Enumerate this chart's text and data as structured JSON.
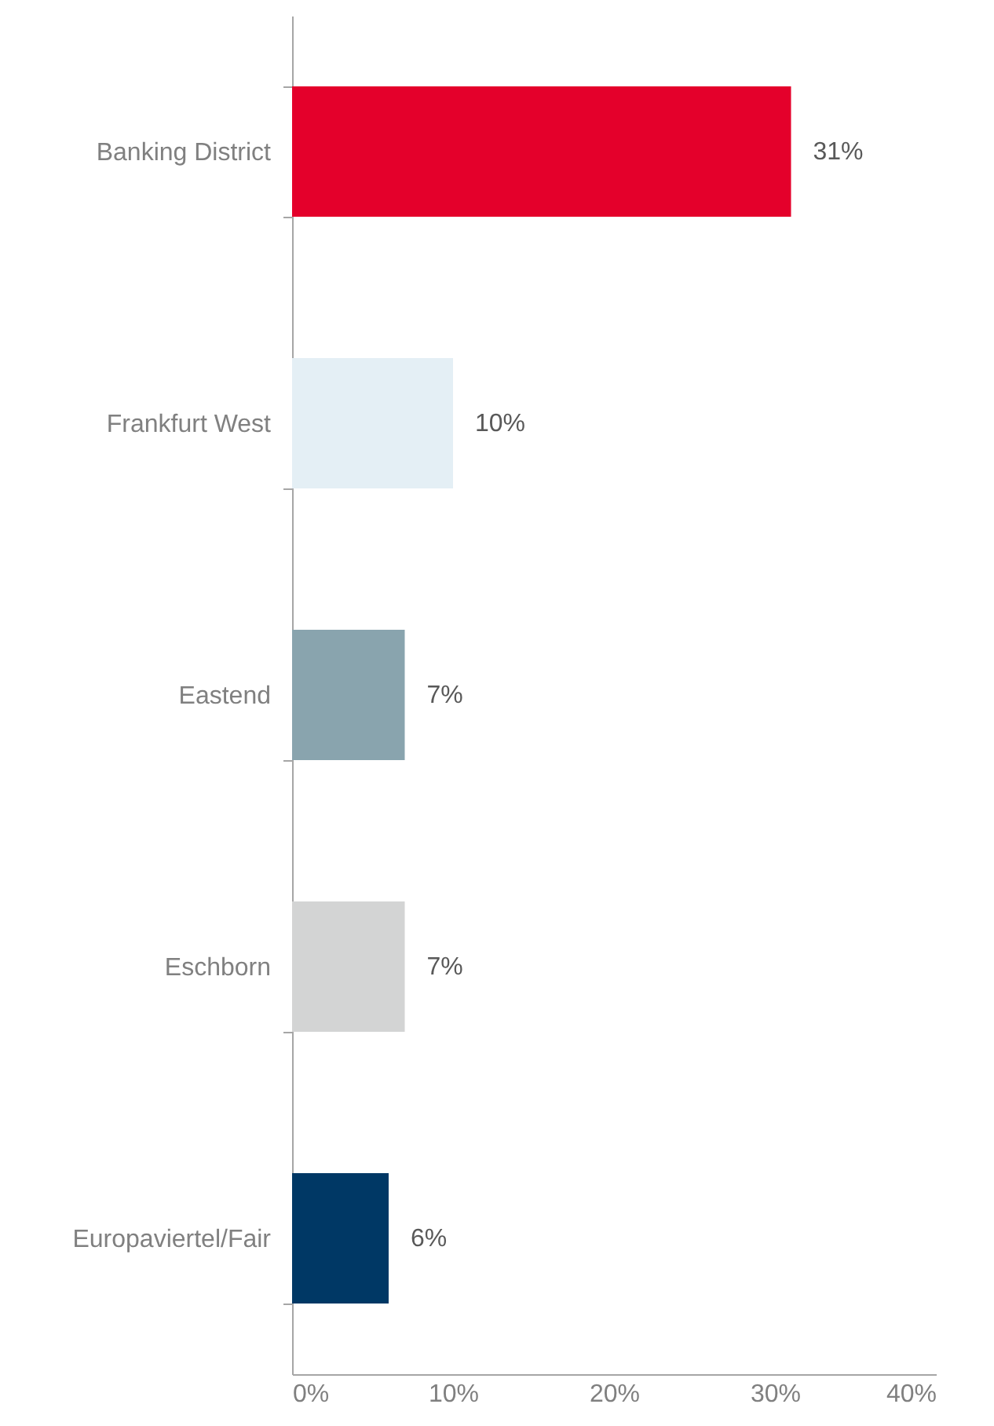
{
  "chart_data": {
    "type": "bar",
    "orientation": "horizontal",
    "categories": [
      "Banking District",
      "Frankfurt West",
      "Eastend",
      "Eschborn",
      "Europaviertel/Fair"
    ],
    "values": [
      31,
      10,
      7,
      7,
      6
    ],
    "colors": [
      "#e4002b",
      "#e4eff5",
      "#89a4ae",
      "#d3d4d4",
      "#003865"
    ],
    "value_labels": [
      "31%",
      "10%",
      "7%",
      "7%",
      "6%"
    ],
    "xlim": [
      0,
      40
    ],
    "xticks": [
      {
        "value": 0,
        "label": "0%"
      },
      {
        "value": 10,
        "label": "10%"
      },
      {
        "value": 20,
        "label": "20%"
      },
      {
        "value": 30,
        "label": "30%"
      },
      {
        "value": 40,
        "label": "40%"
      }
    ],
    "grid": false
  }
}
